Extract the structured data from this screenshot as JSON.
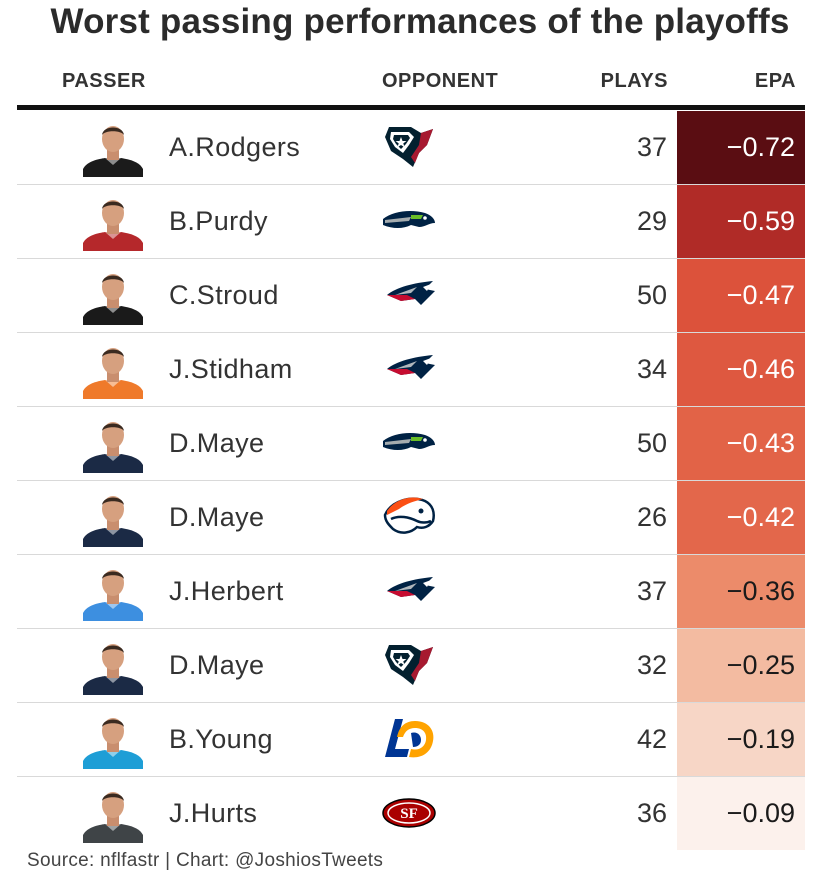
{
  "title": "Worst passing performances of the playoffs",
  "columns": {
    "passer": "PASSER",
    "opponent": "OPPONENT",
    "plays": "PLAYS",
    "epa": "EPA"
  },
  "source": "Source: nflfastr | Chart: @JoshiosTweets",
  "chart_data": {
    "type": "table",
    "columns": [
      "PASSER",
      "OPPONENT",
      "PLAYS",
      "EPA"
    ],
    "rows": [
      {
        "passer": "A.Rodgers",
        "opponent": "texans-logo",
        "plays": "37",
        "epa": "−0.72",
        "epa_value": -0.72,
        "jersey": "#1b1b1b",
        "bg": "#5a0d12",
        "fg": "#ffffff"
      },
      {
        "passer": "B.Purdy",
        "opponent": "seahawks-logo",
        "plays": "29",
        "epa": "−0.59",
        "epa_value": -0.59,
        "jersey": "#b5282b",
        "bg": "#b02b27",
        "fg": "#ffffff"
      },
      {
        "passer": "C.Stroud",
        "opponent": "patriots-logo",
        "plays": "50",
        "epa": "−0.47",
        "epa_value": -0.47,
        "jersey": "#1a1a1a",
        "bg": "#dc523b",
        "fg": "#ffffff"
      },
      {
        "passer": "J.Stidham",
        "opponent": "patriots-logo",
        "plays": "34",
        "epa": "−0.46",
        "epa_value": -0.46,
        "jersey": "#ef7a2b",
        "bg": "#de5840",
        "fg": "#ffffff"
      },
      {
        "passer": "D.Maye",
        "opponent": "seahawks-logo",
        "plays": "50",
        "epa": "−0.43",
        "epa_value": -0.43,
        "jersey": "#1b2a45",
        "bg": "#e26347",
        "fg": "#ffffff"
      },
      {
        "passer": "D.Maye",
        "opponent": "broncos-logo",
        "plays": "26",
        "epa": "−0.42",
        "epa_value": -0.42,
        "jersey": "#1b2a45",
        "bg": "#e3674b",
        "fg": "#ffffff"
      },
      {
        "passer": "J.Herbert",
        "opponent": "patriots-logo",
        "plays": "37",
        "epa": "−0.36",
        "epa_value": -0.36,
        "jersey": "#3d8fe0",
        "bg": "#ec8b6a",
        "fg": "#1a1a1a"
      },
      {
        "passer": "D.Maye",
        "opponent": "texans-logo",
        "plays": "32",
        "epa": "−0.25",
        "epa_value": -0.25,
        "jersey": "#1b2a45",
        "bg": "#f3bba1",
        "fg": "#1a1a1a"
      },
      {
        "passer": "B.Young",
        "opponent": "rams-logo",
        "plays": "42",
        "epa": "−0.19",
        "epa_value": -0.19,
        "jersey": "#1e9ed6",
        "bg": "#f7d6c6",
        "fg": "#1a1a1a"
      },
      {
        "passer": "J.Hurts",
        "opponent": "49ers-logo",
        "plays": "36",
        "epa": "−0.09",
        "epa_value": -0.09,
        "jersey": "#3f4447",
        "bg": "#fcf1ec",
        "fg": "#1a1a1a"
      }
    ]
  }
}
